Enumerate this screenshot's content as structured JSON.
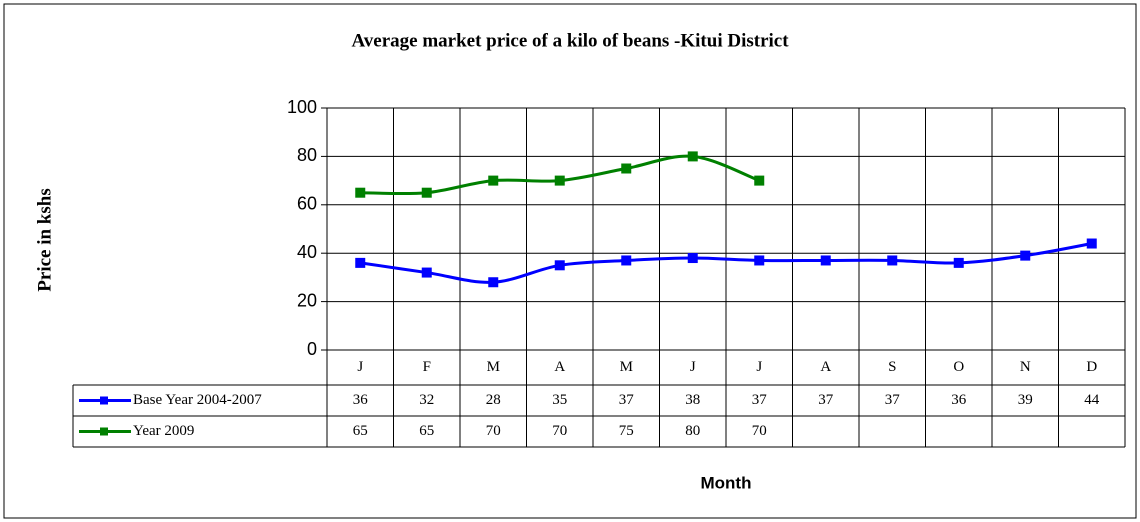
{
  "chart_data": {
    "type": "line",
    "title": "Average market price of a kilo of beans -Kitui District",
    "y_label": "Price in kshs",
    "x_label": "Month",
    "categories": [
      "J",
      "F",
      "M",
      "A",
      "M",
      "J",
      "J",
      "A",
      "S",
      "O",
      "N",
      "D"
    ],
    "series": [
      {
        "name": "Base Year 2004-2007",
        "color": "#0000ff",
        "values": [
          36,
          32,
          28,
          35,
          37,
          38,
          37,
          37,
          37,
          36,
          39,
          44
        ]
      },
      {
        "name": "Year 2009",
        "color": "#008000",
        "values": [
          65,
          65,
          70,
          70,
          75,
          80,
          70,
          null,
          null,
          null,
          null,
          null
        ]
      }
    ],
    "ylim": [
      0,
      100
    ],
    "yticks": [
      0,
      20,
      40,
      60,
      80,
      100
    ],
    "grid": true,
    "smooth": true,
    "data_table": true
  }
}
